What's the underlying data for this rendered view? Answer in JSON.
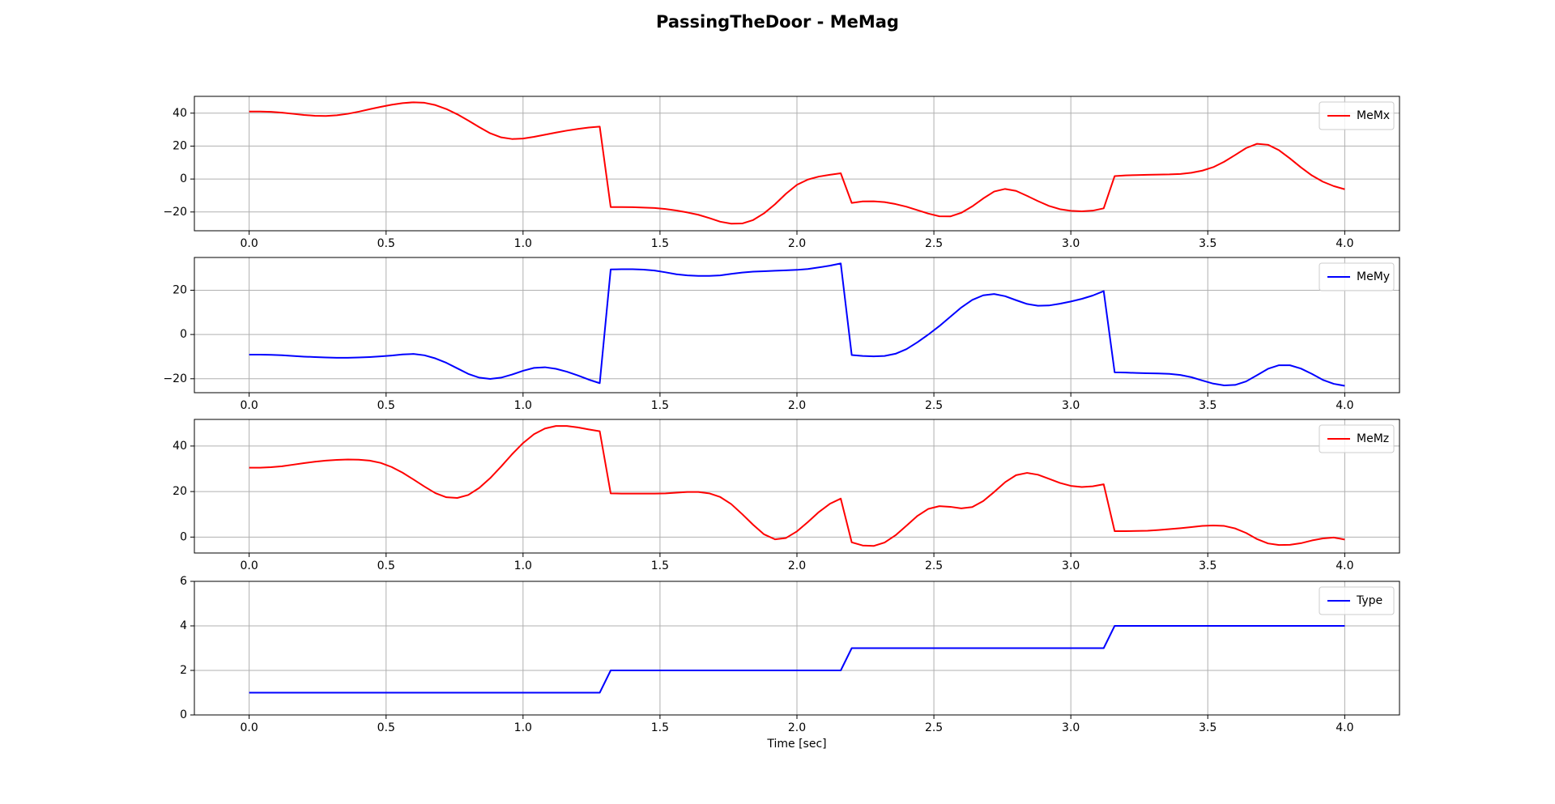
{
  "title": "PassingTheDoor - MeMag",
  "chart_data": [
    {
      "type": "line",
      "x": [
        0,
        0.04,
        0.08,
        0.12,
        0.16,
        0.2,
        0.24,
        0.28,
        0.32,
        0.36,
        0.4,
        0.44,
        0.48,
        0.52,
        0.56,
        0.6,
        0.64,
        0.68,
        0.72,
        0.76,
        0.8,
        0.84,
        0.88,
        0.92,
        0.96,
        1,
        1.04,
        1.08,
        1.12,
        1.16,
        1.2,
        1.24,
        1.28,
        1.32,
        1.36,
        1.4,
        1.44,
        1.48,
        1.52,
        1.56,
        1.6,
        1.64,
        1.68,
        1.72,
        1.76,
        1.8,
        1.84,
        1.88,
        1.92,
        1.96,
        2,
        2.04,
        2.08,
        2.12,
        2.16,
        2.2,
        2.24,
        2.28,
        2.32,
        2.36,
        2.4,
        2.44,
        2.48,
        2.52,
        2.56,
        2.6,
        2.64,
        2.68,
        2.72,
        2.76,
        2.8,
        2.84,
        2.88,
        2.92,
        2.96,
        3,
        3.04,
        3.08,
        3.12,
        3.16,
        3.2,
        3.24,
        3.28,
        3.32,
        3.36,
        3.4,
        3.44,
        3.48,
        3.52,
        3.56,
        3.6,
        3.64,
        3.68,
        3.72,
        3.76,
        3.8,
        3.84,
        3.88,
        3.92,
        3.96,
        4
      ],
      "series": [
        {
          "name": "MeMx",
          "color": "#ff0000",
          "values": [
            41,
            41,
            40.8,
            40.3,
            39.6,
            38.9,
            38.4,
            38.3,
            38.7,
            39.6,
            40.9,
            42.4,
            43.8,
            45.1,
            46.1,
            46.6,
            46.3,
            44.9,
            42.5,
            39.3,
            35.5,
            31.5,
            27.8,
            25.3,
            24.3,
            24.6,
            25.6,
            26.9,
            28.2,
            29.4,
            30.4,
            31.3,
            31.8,
            -17,
            -17,
            -17.1,
            -17.3,
            -17.6,
            -18.2,
            -19.1,
            -20.3,
            -21.7,
            -23.7,
            -25.9,
            -27.1,
            -27,
            -24.9,
            -20.8,
            -15.3,
            -8.9,
            -3.5,
            -0.3,
            1.5,
            2.6,
            3.5,
            -14.5,
            -13.6,
            -13.5,
            -14,
            -15.2,
            -16.8,
            -18.9,
            -21,
            -22.6,
            -22.7,
            -20.5,
            -16.6,
            -11.8,
            -7.6,
            -6,
            -7.2,
            -10.2,
            -13.4,
            -16.3,
            -18.3,
            -19.3,
            -19.6,
            -19.2,
            -17.8,
            1.8,
            2.2,
            2.4,
            2.6,
            2.7,
            2.8,
            3.1,
            3.8,
            5.1,
            7.2,
            10.5,
            14.6,
            18.8,
            21.4,
            20.8,
            17.5,
            12.5,
            7.1,
            2.2,
            -1.6,
            -4.3,
            -6.2
          ]
        }
      ],
      "xlim": [
        -0.2,
        4.2
      ],
      "xticks": [
        {
          "value": 0,
          "label": "0.0"
        },
        0.5,
        {
          "value": 1,
          "label": "1.0"
        },
        1.5,
        {
          "value": 2,
          "label": "2.0"
        },
        2.5,
        {
          "value": 3,
          "label": "3.0"
        },
        3.5,
        {
          "value": 4,
          "label": "4.0"
        }
      ],
      "ylim": [
        -31.4,
        50.2
      ],
      "yticks": [
        {
          "value": -20,
          "label": "−20"
        },
        0,
        20,
        40
      ],
      "grid": true,
      "legend": "upper right"
    },
    {
      "type": "line",
      "x": [
        0,
        0.04,
        0.08,
        0.12,
        0.16,
        0.2,
        0.24,
        0.28,
        0.32,
        0.36,
        0.4,
        0.44,
        0.48,
        0.52,
        0.56,
        0.6,
        0.64,
        0.68,
        0.72,
        0.76,
        0.8,
        0.84,
        0.88,
        0.92,
        0.96,
        1,
        1.04,
        1.08,
        1.12,
        1.16,
        1.2,
        1.24,
        1.28,
        1.32,
        1.36,
        1.4,
        1.44,
        1.48,
        1.52,
        1.56,
        1.6,
        1.64,
        1.68,
        1.72,
        1.76,
        1.8,
        1.84,
        1.88,
        1.92,
        1.96,
        2,
        2.04,
        2.08,
        2.12,
        2.16,
        2.2,
        2.24,
        2.28,
        2.32,
        2.36,
        2.4,
        2.44,
        2.48,
        2.52,
        2.56,
        2.6,
        2.64,
        2.68,
        2.72,
        2.76,
        2.8,
        2.84,
        2.88,
        2.92,
        2.96,
        3,
        3.04,
        3.08,
        3.12,
        3.16,
        3.2,
        3.24,
        3.28,
        3.32,
        3.36,
        3.4,
        3.44,
        3.48,
        3.52,
        3.56,
        3.6,
        3.64,
        3.68,
        3.72,
        3.76,
        3.8,
        3.84,
        3.88,
        3.92,
        3.96,
        4
      ],
      "series": [
        {
          "name": "MeMy",
          "color": "#0000ff",
          "values": [
            -9.1,
            -9.1,
            -9.2,
            -9.4,
            -9.7,
            -10,
            -10.2,
            -10.4,
            -10.5,
            -10.5,
            -10.4,
            -10.2,
            -9.9,
            -9.5,
            -9,
            -8.8,
            -9.4,
            -10.8,
            -12.8,
            -15.3,
            -17.8,
            -19.5,
            -20.1,
            -19.5,
            -18.1,
            -16.4,
            -15.1,
            -14.8,
            -15.5,
            -16.8,
            -18.5,
            -20.4,
            -22,
            29.4,
            29.5,
            29.5,
            29.3,
            28.9,
            28.1,
            27.2,
            26.7,
            26.5,
            26.5,
            26.7,
            27.4,
            28,
            28.4,
            28.6,
            28.8,
            29,
            29.2,
            29.6,
            30.3,
            31.1,
            32.1,
            -9.3,
            -9.7,
            -9.9,
            -9.7,
            -8.7,
            -6.6,
            -3.5,
            0,
            3.8,
            8,
            12.2,
            15.6,
            17.7,
            18.3,
            17.3,
            15.5,
            13.8,
            13,
            13.1,
            13.9,
            14.9,
            16.1,
            17.6,
            19.6,
            -17.1,
            -17.2,
            -17.4,
            -17.5,
            -17.6,
            -17.8,
            -18.3,
            -19.3,
            -20.8,
            -22.2,
            -23,
            -22.8,
            -21.2,
            -18.4,
            -15.5,
            -13.9,
            -13.9,
            -15.4,
            -17.8,
            -20.5,
            -22.3,
            -23.2
          ]
        }
      ],
      "xlim": [
        -0.2,
        4.2
      ],
      "xticks": [
        {
          "value": 0,
          "label": "0.0"
        },
        0.5,
        {
          "value": 1,
          "label": "1.0"
        },
        1.5,
        {
          "value": 2,
          "label": "2.0"
        },
        2.5,
        {
          "value": 3,
          "label": "3.0"
        },
        3.5,
        {
          "value": 4,
          "label": "4.0"
        }
      ],
      "ylim": [
        -26.3,
        34.8
      ],
      "yticks": [
        {
          "value": -20,
          "label": "−20"
        },
        0,
        20
      ],
      "grid": true,
      "legend": "upper right"
    },
    {
      "type": "line",
      "x": [
        0,
        0.04,
        0.08,
        0.12,
        0.16,
        0.2,
        0.24,
        0.28,
        0.32,
        0.36,
        0.4,
        0.44,
        0.48,
        0.52,
        0.56,
        0.6,
        0.64,
        0.68,
        0.72,
        0.76,
        0.8,
        0.84,
        0.88,
        0.92,
        0.96,
        1,
        1.04,
        1.08,
        1.12,
        1.16,
        1.2,
        1.24,
        1.28,
        1.32,
        1.36,
        1.4,
        1.44,
        1.48,
        1.52,
        1.56,
        1.6,
        1.64,
        1.68,
        1.72,
        1.76,
        1.8,
        1.84,
        1.88,
        1.92,
        1.96,
        2,
        2.04,
        2.08,
        2.12,
        2.16,
        2.2,
        2.24,
        2.28,
        2.32,
        2.36,
        2.4,
        2.44,
        2.48,
        2.52,
        2.56,
        2.6,
        2.64,
        2.68,
        2.72,
        2.76,
        2.8,
        2.84,
        2.88,
        2.92,
        2.96,
        3,
        3.04,
        3.08,
        3.12,
        3.16,
        3.2,
        3.24,
        3.28,
        3.32,
        3.36,
        3.4,
        3.44,
        3.48,
        3.52,
        3.56,
        3.6,
        3.64,
        3.68,
        3.72,
        3.76,
        3.8,
        3.84,
        3.88,
        3.92,
        3.96,
        4
      ],
      "series": [
        {
          "name": "MeMz",
          "color": "#ff0000",
          "values": [
            30.5,
            30.5,
            30.7,
            31.1,
            31.8,
            32.5,
            33.1,
            33.6,
            33.9,
            34.1,
            34,
            33.6,
            32.6,
            30.8,
            28.3,
            25.3,
            22.2,
            19.3,
            17.5,
            17.2,
            18.5,
            21.6,
            25.9,
            31,
            36.4,
            41.3,
            45.2,
            47.7,
            48.8,
            48.8,
            48.2,
            47.3,
            46.5,
            19.2,
            19.1,
            19.1,
            19.1,
            19.1,
            19.2,
            19.5,
            19.8,
            19.8,
            19.2,
            17.6,
            14.5,
            10.1,
            5.4,
            1.2,
            -1,
            -0.4,
            2.5,
            6.6,
            11,
            14.6,
            16.9,
            -2.3,
            -3.7,
            -3.9,
            -2.4,
            0.8,
            5,
            9.3,
            12.4,
            13.6,
            13.3,
            12.6,
            13.2,
            15.8,
            19.8,
            24.1,
            27.2,
            28.2,
            27.4,
            25.6,
            23.8,
            22.5,
            22,
            22.3,
            23.2,
            2.6,
            2.6,
            2.7,
            2.8,
            3.1,
            3.5,
            3.9,
            4.4,
            4.9,
            5.1,
            4.9,
            3.8,
            1.8,
            -0.9,
            -2.8,
            -3.5,
            -3.4,
            -2.7,
            -1.5,
            -0.6,
            -0.2,
            -1.1
          ]
        }
      ],
      "xlim": [
        -0.2,
        4.2
      ],
      "xticks": [
        {
          "value": 0,
          "label": "0.0"
        },
        0.5,
        {
          "value": 1,
          "label": "1.0"
        },
        1.5,
        {
          "value": 2,
          "label": "2.0"
        },
        2.5,
        {
          "value": 3,
          "label": "3.0"
        },
        3.5,
        {
          "value": 4,
          "label": "4.0"
        }
      ],
      "ylim": [
        -7,
        51.7
      ],
      "yticks": [
        0,
        20,
        40
      ],
      "grid": true,
      "legend": "upper right"
    },
    {
      "type": "line",
      "x": [
        0,
        0.04,
        0.08,
        0.12,
        0.16,
        0.2,
        0.24,
        0.28,
        0.32,
        0.36,
        0.4,
        0.44,
        0.48,
        0.52,
        0.56,
        0.6,
        0.64,
        0.68,
        0.72,
        0.76,
        0.8,
        0.84,
        0.88,
        0.92,
        0.96,
        1,
        1.04,
        1.08,
        1.12,
        1.16,
        1.2,
        1.24,
        1.28,
        1.32,
        1.36,
        1.4,
        1.44,
        1.48,
        1.52,
        1.56,
        1.6,
        1.64,
        1.68,
        1.72,
        1.76,
        1.8,
        1.84,
        1.88,
        1.92,
        1.96,
        2,
        2.04,
        2.08,
        2.12,
        2.16,
        2.2,
        2.24,
        2.28,
        2.32,
        2.36,
        2.4,
        2.44,
        2.48,
        2.52,
        2.56,
        2.6,
        2.64,
        2.68,
        2.72,
        2.76,
        2.8,
        2.84,
        2.88,
        2.92,
        2.96,
        3,
        3.04,
        3.08,
        3.12,
        3.16,
        3.2,
        3.24,
        3.28,
        3.32,
        3.36,
        3.4,
        3.44,
        3.48,
        3.52,
        3.56,
        3.6,
        3.64,
        3.68,
        3.72,
        3.76,
        3.8,
        3.84,
        3.88,
        3.92,
        3.96,
        4
      ],
      "series": [
        {
          "name": "Type",
          "color": "#0000ff",
          "values": [
            1,
            1,
            1,
            1,
            1,
            1,
            1,
            1,
            1,
            1,
            1,
            1,
            1,
            1,
            1,
            1,
            1,
            1,
            1,
            1,
            1,
            1,
            1,
            1,
            1,
            1,
            1,
            1,
            1,
            1,
            1,
            1,
            1,
            2,
            2,
            2,
            2,
            2,
            2,
            2,
            2,
            2,
            2,
            2,
            2,
            2,
            2,
            2,
            2,
            2,
            2,
            2,
            2,
            2,
            2,
            3,
            3,
            3,
            3,
            3,
            3,
            3,
            3,
            3,
            3,
            3,
            3,
            3,
            3,
            3,
            3,
            3,
            3,
            3,
            3,
            3,
            3,
            3,
            3,
            4,
            4,
            4,
            4,
            4,
            4,
            4,
            4,
            4,
            4,
            4,
            4,
            4,
            4,
            4,
            4,
            4,
            4,
            4,
            4,
            4,
            4
          ]
        }
      ],
      "xlim": [
        -0.2,
        4.2
      ],
      "xticks": [
        {
          "value": 0,
          "label": "0.0"
        },
        0.5,
        {
          "value": 1,
          "label": "1.0"
        },
        1.5,
        {
          "value": 2,
          "label": "2.0"
        },
        2.5,
        {
          "value": 3,
          "label": "3.0"
        },
        3.5,
        {
          "value": 4,
          "label": "4.0"
        }
      ],
      "ylim": [
        0,
        6
      ],
      "yticks": [
        0,
        2,
        4,
        6
      ],
      "xlabel": "Time [sec]",
      "grid": true,
      "legend": "upper right"
    }
  ]
}
